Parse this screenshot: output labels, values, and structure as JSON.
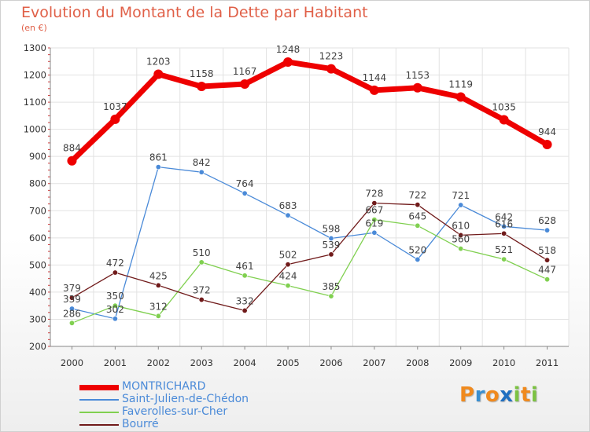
{
  "chart_data": {
    "type": "line",
    "title": "Evolution du Montant de la Dette par Habitant",
    "subtitle": "(en €)",
    "x": [
      "2000",
      "2001",
      "2002",
      "2003",
      "2004",
      "2005",
      "2006",
      "2007",
      "2008",
      "2009",
      "2010",
      "2011"
    ],
    "ylim": [
      200,
      1300
    ],
    "yticks": [
      200,
      300,
      400,
      500,
      600,
      700,
      800,
      900,
      1000,
      1100,
      1200,
      1300
    ],
    "grid": true,
    "legend_position": "bottom-left",
    "series": [
      {
        "name": "MONTRICHARD",
        "color": "#ee0000",
        "values": [
          884,
          1037,
          1203,
          1158,
          1167,
          1248,
          1223,
          1144,
          1153,
          1119,
          1035,
          944
        ]
      },
      {
        "name": "Saint-Julien-de-Chédon",
        "color": "#4a8ad8",
        "values": [
          339,
          302,
          861,
          842,
          764,
          683,
          598,
          619,
          520,
          721,
          642,
          628
        ]
      },
      {
        "name": "Faverolles-sur-Cher",
        "color": "#80d050",
        "values": [
          286,
          350,
          312,
          510,
          461,
          424,
          385,
          667,
          645,
          560,
          521,
          447
        ]
      },
      {
        "name": "Bourré",
        "color": "#701a1a",
        "values": [
          379,
          472,
          425,
          372,
          332,
          502,
          539,
          728,
          722,
          610,
          616,
          518
        ]
      }
    ]
  },
  "logo": {
    "letters": [
      {
        "ch": "P",
        "color": "#f08a1e"
      },
      {
        "ch": "r",
        "color": "#3a8fd0"
      },
      {
        "ch": "o",
        "color": "#f08a1e"
      },
      {
        "ch": "x",
        "color": "#1f6fc0"
      },
      {
        "ch": "i",
        "color": "#7cc242"
      },
      {
        "ch": "t",
        "color": "#f08a1e"
      },
      {
        "ch": "i",
        "color": "#7cc242"
      }
    ]
  }
}
